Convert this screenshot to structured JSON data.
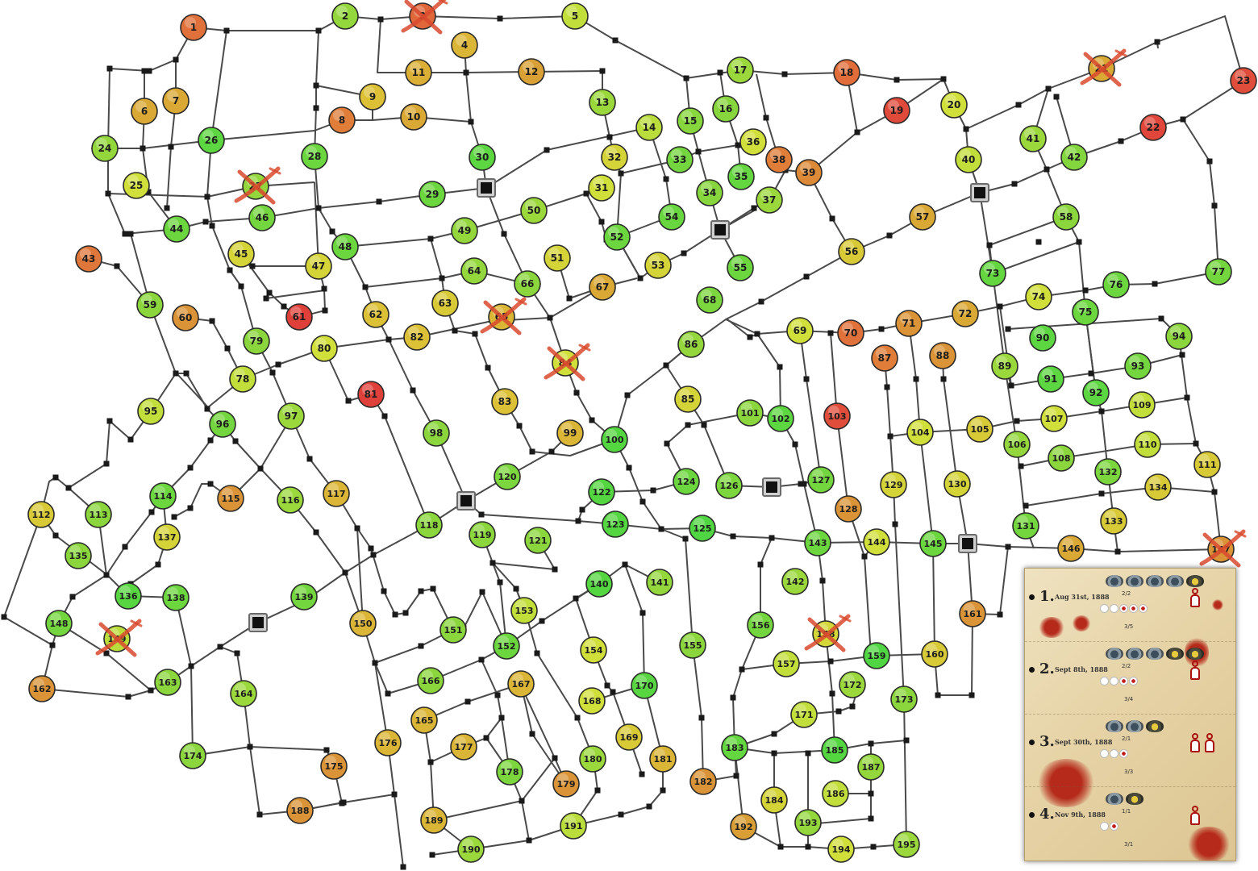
{
  "colors": {
    "road": "#4a4a4a",
    "junction": "#1a1a1a",
    "node_border": "#2a2a2a",
    "node_palette": [
      "#e0403a",
      "#e0763a",
      "#d99a35",
      "#dcc035",
      "#cfe03a",
      "#8ed63c",
      "#4cd642"
    ],
    "cross": "#d94a2e",
    "legend_blood": "#b52a1a"
  },
  "map": {
    "nodes": [
      {
        "n": "1",
        "c": 0.15
      },
      {
        "n": "2",
        "c": 0.82
      },
      {
        "n": "3",
        "c": 0.12,
        "crossed": true
      },
      {
        "n": "4",
        "c": 0.45
      },
      {
        "n": "5",
        "c": 0.7
      },
      {
        "n": "6",
        "c": 0.4
      },
      {
        "n": "7",
        "c": 0.4
      },
      {
        "n": "8",
        "c": 0.2
      },
      {
        "n": "9",
        "c": 0.5
      },
      {
        "n": "10",
        "c": 0.4
      },
      {
        "n": "11",
        "c": 0.42
      },
      {
        "n": "12",
        "c": 0.36
      },
      {
        "n": "13",
        "c": 0.8
      },
      {
        "n": "14",
        "c": 0.72
      },
      {
        "n": "15",
        "c": 0.85
      },
      {
        "n": "16",
        "c": 0.85
      },
      {
        "n": "17",
        "c": 0.8
      },
      {
        "n": "18",
        "c": 0.14
      },
      {
        "n": "19",
        "c": 0.03
      },
      {
        "n": "20",
        "c": 0.66
      },
      {
        "n": "21",
        "c": 0.4,
        "crossed": true
      },
      {
        "n": "22",
        "c": 0.02
      },
      {
        "n": "23",
        "c": 0.04
      },
      {
        "n": "24",
        "c": 0.82
      },
      {
        "n": "25",
        "c": 0.66
      },
      {
        "n": "26",
        "c": 0.96
      },
      {
        "n": "27",
        "c": 0.82,
        "crossed": true
      },
      {
        "n": "28",
        "c": 0.92
      },
      {
        "n": "29",
        "c": 0.92
      },
      {
        "n": "30",
        "c": 0.96
      },
      {
        "n": "31",
        "c": 0.66
      },
      {
        "n": "32",
        "c": 0.6
      },
      {
        "n": "33",
        "c": 0.9
      },
      {
        "n": "34",
        "c": 0.85
      },
      {
        "n": "35",
        "c": 0.94
      },
      {
        "n": "36",
        "c": 0.66
      },
      {
        "n": "37",
        "c": 0.8
      },
      {
        "n": "38",
        "c": 0.2
      },
      {
        "n": "39",
        "c": 0.26
      },
      {
        "n": "40",
        "c": 0.7
      },
      {
        "n": "41",
        "c": 0.8
      },
      {
        "n": "42",
        "c": 0.86
      },
      {
        "n": "43",
        "c": 0.17
      },
      {
        "n": "44",
        "c": 0.92
      },
      {
        "n": "45",
        "c": 0.6
      },
      {
        "n": "46",
        "c": 0.9
      },
      {
        "n": "47",
        "c": 0.6
      },
      {
        "n": "48",
        "c": 0.92
      },
      {
        "n": "49",
        "c": 0.82
      },
      {
        "n": "50",
        "c": 0.8
      },
      {
        "n": "51",
        "c": 0.6
      },
      {
        "n": "52",
        "c": 0.92
      },
      {
        "n": "53",
        "c": 0.6
      },
      {
        "n": "54",
        "c": 0.93
      },
      {
        "n": "55",
        "c": 0.92
      },
      {
        "n": "56",
        "c": 0.55
      },
      {
        "n": "57",
        "c": 0.4
      },
      {
        "n": "58",
        "c": 0.84
      },
      {
        "n": "59",
        "c": 0.84
      },
      {
        "n": "60",
        "c": 0.3
      },
      {
        "n": "61",
        "c": 0.0
      },
      {
        "n": "62",
        "c": 0.5
      },
      {
        "n": "63",
        "c": 0.55
      },
      {
        "n": "64",
        "c": 0.82
      },
      {
        "n": "65",
        "c": 0.45,
        "crossed": true
      },
      {
        "n": "66",
        "c": 0.84
      },
      {
        "n": "67",
        "c": 0.4
      },
      {
        "n": "68",
        "c": 0.88
      },
      {
        "n": "69",
        "c": 0.66
      },
      {
        "n": "70",
        "c": 0.15
      },
      {
        "n": "71",
        "c": 0.3
      },
      {
        "n": "72",
        "c": 0.4
      },
      {
        "n": "73",
        "c": 0.94
      },
      {
        "n": "74",
        "c": 0.66
      },
      {
        "n": "75",
        "c": 0.92
      },
      {
        "n": "76",
        "c": 0.92
      },
      {
        "n": "77",
        "c": 0.9
      },
      {
        "n": "78",
        "c": 0.7
      },
      {
        "n": "79",
        "c": 0.84
      },
      {
        "n": "80",
        "c": 0.66
      },
      {
        "n": "81",
        "c": 0.0
      },
      {
        "n": "82",
        "c": 0.5
      },
      {
        "n": "83",
        "c": 0.5
      },
      {
        "n": "84",
        "c": 0.66,
        "crossed": true
      },
      {
        "n": "85",
        "c": 0.6
      },
      {
        "n": "86",
        "c": 0.82
      },
      {
        "n": "87",
        "c": 0.2
      },
      {
        "n": "88",
        "c": 0.3
      },
      {
        "n": "89",
        "c": 0.8
      },
      {
        "n": "90",
        "c": 0.96
      },
      {
        "n": "91",
        "c": 0.96
      },
      {
        "n": "92",
        "c": 0.96
      },
      {
        "n": "93",
        "c": 0.9
      },
      {
        "n": "94",
        "c": 0.84
      },
      {
        "n": "95",
        "c": 0.7
      },
      {
        "n": "96",
        "c": 0.9
      },
      {
        "n": "97",
        "c": 0.8
      },
      {
        "n": "98",
        "c": 0.84
      },
      {
        "n": "99",
        "c": 0.45
      },
      {
        "n": "100",
        "c": 0.98
      },
      {
        "n": "101",
        "c": 0.84
      },
      {
        "n": "102",
        "c": 0.96
      },
      {
        "n": "103",
        "c": 0.04
      },
      {
        "n": "104",
        "c": 0.66
      },
      {
        "n": "105",
        "c": 0.55
      },
      {
        "n": "106",
        "c": 0.82
      },
      {
        "n": "107",
        "c": 0.66
      },
      {
        "n": "108",
        "c": 0.84
      },
      {
        "n": "109",
        "c": 0.7
      },
      {
        "n": "110",
        "c": 0.7
      },
      {
        "n": "111",
        "c": 0.55
      },
      {
        "n": "112",
        "c": 0.55
      },
      {
        "n": "113",
        "c": 0.84
      },
      {
        "n": "114",
        "c": 0.92
      },
      {
        "n": "115",
        "c": 0.3
      },
      {
        "n": "116",
        "c": 0.8
      },
      {
        "n": "117",
        "c": 0.45
      },
      {
        "n": "118",
        "c": 0.84
      },
      {
        "n": "119",
        "c": 0.84
      },
      {
        "n": "120",
        "c": 0.88
      },
      {
        "n": "121",
        "c": 0.84
      },
      {
        "n": "122",
        "c": 0.98
      },
      {
        "n": "123",
        "c": 0.98
      },
      {
        "n": "124",
        "c": 0.92
      },
      {
        "n": "125",
        "c": 0.99
      },
      {
        "n": "126",
        "c": 0.88
      },
      {
        "n": "127",
        "c": 0.9
      },
      {
        "n": "128",
        "c": 0.3
      },
      {
        "n": "129",
        "c": 0.6
      },
      {
        "n": "130",
        "c": 0.6
      },
      {
        "n": "131",
        "c": 0.9
      },
      {
        "n": "132",
        "c": 0.88
      },
      {
        "n": "133",
        "c": 0.55
      },
      {
        "n": "134",
        "c": 0.55
      },
      {
        "n": "135",
        "c": 0.84
      },
      {
        "n": "136",
        "c": 0.97
      },
      {
        "n": "137",
        "c": 0.6
      },
      {
        "n": "138",
        "c": 0.92
      },
      {
        "n": "139",
        "c": 0.9
      },
      {
        "n": "140",
        "c": 0.98
      },
      {
        "n": "141",
        "c": 0.82
      },
      {
        "n": "142",
        "c": 0.8
      },
      {
        "n": "143",
        "c": 0.92
      },
      {
        "n": "144",
        "c": 0.66
      },
      {
        "n": "145",
        "c": 0.92
      },
      {
        "n": "146",
        "c": 0.4
      },
      {
        "n": "147",
        "c": 0.3,
        "crossed": true
      },
      {
        "n": "148",
        "c": 0.9
      },
      {
        "n": "149",
        "c": 0.72,
        "crossed": true
      },
      {
        "n": "150",
        "c": 0.45
      },
      {
        "n": "151",
        "c": 0.84
      },
      {
        "n": "152",
        "c": 0.92
      },
      {
        "n": "153",
        "c": 0.7
      },
      {
        "n": "154",
        "c": 0.66
      },
      {
        "n": "155",
        "c": 0.84
      },
      {
        "n": "156",
        "c": 0.9
      },
      {
        "n": "157",
        "c": 0.7
      },
      {
        "n": "158",
        "c": 0.62,
        "crossed": true
      },
      {
        "n": "159",
        "c": 0.99
      },
      {
        "n": "160",
        "c": 0.55
      },
      {
        "n": "161",
        "c": 0.3
      },
      {
        "n": "162",
        "c": 0.3
      },
      {
        "n": "163",
        "c": 0.84
      },
      {
        "n": "164",
        "c": 0.8
      },
      {
        "n": "165",
        "c": 0.45
      },
      {
        "n": "166",
        "c": 0.84
      },
      {
        "n": "167",
        "c": 0.45
      },
      {
        "n": "168",
        "c": 0.66
      },
      {
        "n": "169",
        "c": 0.55
      },
      {
        "n": "170",
        "c": 0.97
      },
      {
        "n": "171",
        "c": 0.7
      },
      {
        "n": "172",
        "c": 0.8
      },
      {
        "n": "173",
        "c": 0.84
      },
      {
        "n": "174",
        "c": 0.84
      },
      {
        "n": "175",
        "c": 0.3
      },
      {
        "n": "176",
        "c": 0.45
      },
      {
        "n": "177",
        "c": 0.45
      },
      {
        "n": "178",
        "c": 0.88
      },
      {
        "n": "179",
        "c": 0.3
      },
      {
        "n": "180",
        "c": 0.8
      },
      {
        "n": "181",
        "c": 0.45
      },
      {
        "n": "182",
        "c": 0.3
      },
      {
        "n": "183",
        "c": 0.94
      },
      {
        "n": "184",
        "c": 0.6
      },
      {
        "n": "185",
        "c": 0.98
      },
      {
        "n": "186",
        "c": 0.7
      },
      {
        "n": "187",
        "c": 0.82
      },
      {
        "n": "188",
        "c": 0.3
      },
      {
        "n": "189",
        "c": 0.45
      },
      {
        "n": "190",
        "c": 0.8
      },
      {
        "n": "191",
        "c": 0.72
      },
      {
        "n": "192",
        "c": 0.35
      },
      {
        "n": "193",
        "c": 0.82
      },
      {
        "n": "194",
        "c": 0.66
      },
      {
        "n": "195",
        "c": 0.8
      }
    ]
  },
  "legend": {
    "rounds": [
      {
        "num": "1.",
        "date": "Aug 31st, 1888",
        "lamps_total": 5,
        "lamps_gold": 1,
        "lamp_count": "2/2",
        "tokens_total": 5,
        "tokens_red": 3,
        "token_count": "3/5",
        "victims": 1
      },
      {
        "num": "2.",
        "date": "Sept 8th, 1888",
        "lamps_total": 5,
        "lamps_gold": 2,
        "lamp_count": "2/2",
        "tokens_total": 4,
        "tokens_red": 2,
        "token_count": "3/4",
        "victims": 1
      },
      {
        "num": "3.",
        "date": "Sept 30th, 1888",
        "lamps_total": 3,
        "lamps_gold": 1,
        "lamp_count": "2/1",
        "tokens_total": 3,
        "tokens_red": 1,
        "token_count": "3/3",
        "victims": 2
      },
      {
        "num": "4.",
        "date": "Nov 9th, 1888",
        "lamps_total": 2,
        "lamps_gold": 1,
        "lamp_count": "1/1",
        "tokens_total": 2,
        "tokens_red": 1,
        "token_count": "3/1",
        "victims": 1
      }
    ]
  }
}
